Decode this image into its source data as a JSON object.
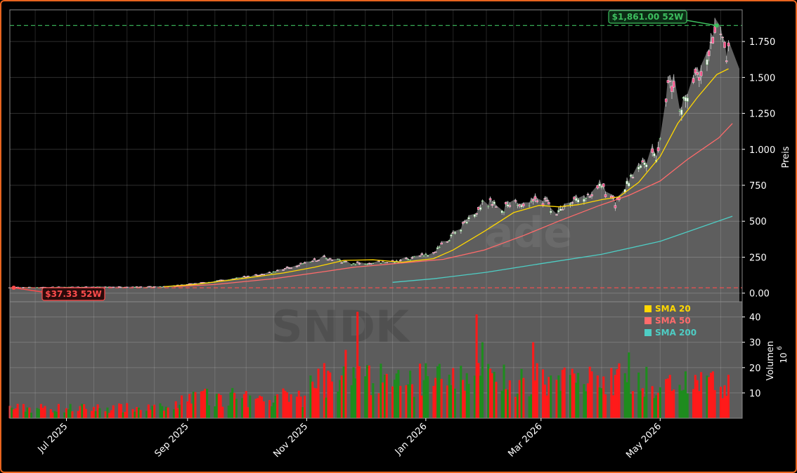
{
  "chart_data": {
    "type": "candlestick",
    "ticker": "SNDK",
    "watermark_text": "ade",
    "price_axis_label": "Preis",
    "volume_axis_label": "Volumen",
    "volume_multiplier": "10",
    "volume_multiplier_exp": "6",
    "price_ticks": [
      "0.00",
      "250",
      "500",
      "750",
      "1.000",
      "1.250",
      "1.500",
      "1.750"
    ],
    "price_tick_values": [
      0,
      250,
      500,
      750,
      1000,
      1250,
      1500,
      1750
    ],
    "volume_ticks": [
      "10",
      "20",
      "30",
      "40"
    ],
    "volume_tick_values": [
      10,
      20,
      30,
      40
    ],
    "date_ticks": [
      "Jul 2025",
      "Sep 2025",
      "Nov 2025",
      "Jan 2026",
      "Mar 2026",
      "May 2026"
    ],
    "date_tick_values": [
      "2025-07-01",
      "2025-09-01",
      "2025-11-01",
      "2026-01-01",
      "2026-03-01",
      "2026-05-01"
    ],
    "x_range": [
      "2025-06-02",
      "2026-06-12"
    ],
    "price_range": [
      -60,
      1970
    ],
    "volume_range": [
      0,
      46
    ],
    "high_52w": {
      "value": 1861,
      "label": "$1,861.00 52W",
      "date": "2026-05-30",
      "color": "#3dbf5e"
    },
    "low_52w": {
      "value": 37.33,
      "label": "$37.33 52W",
      "date": "2025-06-04",
      "color": "#ff4d4d"
    },
    "legend": [
      {
        "label": "SMA 20",
        "color": "#ffd700"
      },
      {
        "label": "SMA 50",
        "color": "#ff6b6b"
      },
      {
        "label": "SMA 200",
        "color": "#4ecdc4"
      }
    ],
    "sma_20": [
      [
        "2025-08-20",
        45
      ],
      [
        "2025-09-05",
        60
      ],
      [
        "2025-10-01",
        105
      ],
      [
        "2025-10-20",
        140
      ],
      [
        "2025-11-05",
        180
      ],
      [
        "2025-11-20",
        228
      ],
      [
        "2025-12-05",
        232
      ],
      [
        "2025-12-20",
        215
      ],
      [
        "2026-01-05",
        240
      ],
      [
        "2026-01-15",
        300
      ],
      [
        "2026-01-31",
        430
      ],
      [
        "2026-02-15",
        560
      ],
      [
        "2026-02-28",
        610
      ],
      [
        "2026-03-10",
        600
      ],
      [
        "2026-03-20",
        615
      ],
      [
        "2026-04-01",
        650
      ],
      [
        "2026-04-10",
        670
      ],
      [
        "2026-04-20",
        770
      ],
      [
        "2026-05-01",
        950
      ],
      [
        "2026-05-10",
        1180
      ],
      [
        "2026-05-20",
        1360
      ],
      [
        "2026-05-30",
        1520
      ],
      [
        "2026-06-05",
        1560
      ]
    ],
    "sma_50": [
      [
        "2025-08-25",
        45
      ],
      [
        "2025-09-15",
        60
      ],
      [
        "2025-10-15",
        100
      ],
      [
        "2025-11-10",
        150
      ],
      [
        "2025-11-25",
        180
      ],
      [
        "2025-12-20",
        210
      ],
      [
        "2026-01-10",
        235
      ],
      [
        "2026-01-31",
        300
      ],
      [
        "2026-02-20",
        400
      ],
      [
        "2026-03-10",
        500
      ],
      [
        "2026-03-31",
        610
      ],
      [
        "2026-04-15",
        680
      ],
      [
        "2026-05-01",
        780
      ],
      [
        "2026-05-15",
        930
      ],
      [
        "2026-05-31",
        1080
      ],
      [
        "2026-06-07",
        1180
      ]
    ],
    "sma_200": [
      [
        "2025-12-15",
        75
      ],
      [
        "2026-01-05",
        100
      ],
      [
        "2026-02-01",
        145
      ],
      [
        "2026-03-01",
        205
      ],
      [
        "2026-04-01",
        270
      ],
      [
        "2026-05-01",
        360
      ],
      [
        "2026-05-20",
        450
      ],
      [
        "2026-06-07",
        535
      ]
    ]
  }
}
